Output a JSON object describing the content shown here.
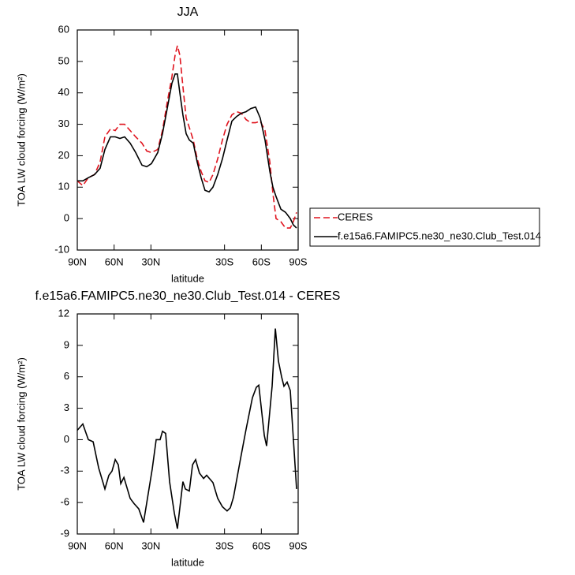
{
  "chart_data": [
    {
      "type": "line",
      "title": "JJA",
      "xlabel": "latitude",
      "ylabel": "TOA LW cloud forcing (W/m²)",
      "x": [
        90,
        85.5,
        81,
        75.9,
        71.4,
        67.5,
        63,
        59.1,
        55.3,
        51.4,
        46.9,
        42.4,
        37.3,
        33.4,
        29.6,
        24.4,
        20.6,
        16.7,
        12.9,
        10.3,
        8.4,
        6.4,
        3.9,
        1.3,
        -1.3,
        -4.5,
        -7.7,
        -10.9,
        -14.1,
        -17.4,
        -20.6,
        -24.4,
        -28.3,
        -32.1,
        -36,
        -39.9,
        -43.7,
        -47.6,
        -51.4,
        -55.3,
        -59.1,
        -63,
        -66.9,
        -69.4,
        -72,
        -75.9,
        -79.7,
        -83.6,
        -86.1,
        -88.7
      ],
      "series": [
        {
          "name": "CERES",
          "color": "#e0141e",
          "linestyle": "dashed",
          "values": [
            12,
            10.5,
            13,
            14,
            18,
            26,
            28.5,
            28,
            30,
            30,
            28,
            26,
            24,
            21.5,
            21,
            22,
            28,
            37,
            45,
            52,
            55,
            52,
            42,
            32,
            29,
            25,
            19,
            15,
            12,
            11.5,
            14,
            19,
            25,
            30,
            33,
            34,
            33.5,
            31.5,
            30.5,
            30.5,
            31,
            28,
            18,
            8,
            0,
            -1,
            -3,
            -3,
            -1,
            2
          ]
        },
        {
          "name": "f.e15a6.FAMIPC5.ne30_ne30.Club_Test.014",
          "color": "#000000",
          "linestyle": "solid",
          "values": [
            12,
            12,
            13,
            14,
            16,
            22,
            26,
            26,
            25.5,
            26,
            24,
            21,
            17,
            16.5,
            17.5,
            21,
            27,
            35,
            43,
            46,
            46,
            40,
            33,
            27,
            25,
            24,
            18,
            13,
            9,
            8.5,
            10,
            14,
            19,
            25,
            31,
            32.5,
            33.5,
            34,
            35,
            35.5,
            32,
            25,
            15,
            10,
            7,
            3,
            2,
            0,
            -2,
            -3
          ]
        }
      ],
      "xlim": [
        90,
        -90
      ],
      "ylim": [
        -10,
        60
      ],
      "xticks": [
        {
          "value": 90,
          "label": "90N"
        },
        {
          "value": 60,
          "label": "60N"
        },
        {
          "value": 30,
          "label": "30N"
        },
        {
          "value": -30,
          "label": "30S"
        },
        {
          "value": -60,
          "label": "60S"
        },
        {
          "value": -90,
          "label": "90S"
        }
      ],
      "yticks": [
        -10,
        0,
        10,
        20,
        30,
        40,
        50,
        60
      ],
      "legend": "outside-right"
    },
    {
      "type": "line",
      "title": "f.e15a6.FAMIPC5.ne30_ne30.Club_Test.014 - CERES",
      "xlabel": "latitude",
      "ylabel": "TOA LW cloud forcing (W/m²)",
      "x": [
        90,
        85.5,
        81,
        77.1,
        72.6,
        67.5,
        64.3,
        61.7,
        59.1,
        56.6,
        54.6,
        52,
        46.9,
        43.7,
        39.9,
        36,
        28.9,
        25.7,
        22.5,
        20.6,
        18,
        14.8,
        10.9,
        8.4,
        3.9,
        1.9,
        -1.3,
        -3.9,
        -6.4,
        -9.6,
        -12.9,
        -15.4,
        -20.6,
        -24.4,
        -28.3,
        -32.1,
        -34.7,
        -37.3,
        -43.1,
        -47.6,
        -52.7,
        -55.9,
        -57.9,
        -62.4,
        -64.3,
        -68.8,
        -71.4,
        -73.9,
        -76.5,
        -78.4,
        -81,
        -83.6,
        -88.7
      ],
      "color": "#000000",
      "values": [
        0.9,
        1.5,
        0,
        -0.2,
        -2.7,
        -4.7,
        -3.4,
        -3,
        -1.9,
        -2.4,
        -4.2,
        -3.6,
        -5.6,
        -6.1,
        -6.6,
        -7.9,
        -2.8,
        0,
        0,
        0.8,
        0.6,
        -4,
        -7,
        -8.5,
        -4,
        -4.7,
        -4.9,
        -2.4,
        -1.9,
        -3.2,
        -3.7,
        -3.4,
        -4.1,
        -5.6,
        -6.4,
        -6.8,
        -6.5,
        -5.5,
        -1.8,
        1,
        4,
        5,
        5.2,
        0.4,
        -0.6,
        5.1,
        10.6,
        7.5,
        6,
        5.1,
        5.5,
        4.7,
        -4.7
      ],
      "xlim": [
        90,
        -90
      ],
      "ylim": [
        -9,
        12
      ],
      "xticks": [
        {
          "value": 90,
          "label": "90N"
        },
        {
          "value": 60,
          "label": "60N"
        },
        {
          "value": 30,
          "label": "30N"
        },
        {
          "value": -30,
          "label": "30S"
        },
        {
          "value": -60,
          "label": "60S"
        },
        {
          "value": -90,
          "label": "90S"
        }
      ],
      "yticks": [
        -9,
        -6,
        -3,
        0,
        3,
        6,
        9,
        12
      ]
    }
  ]
}
